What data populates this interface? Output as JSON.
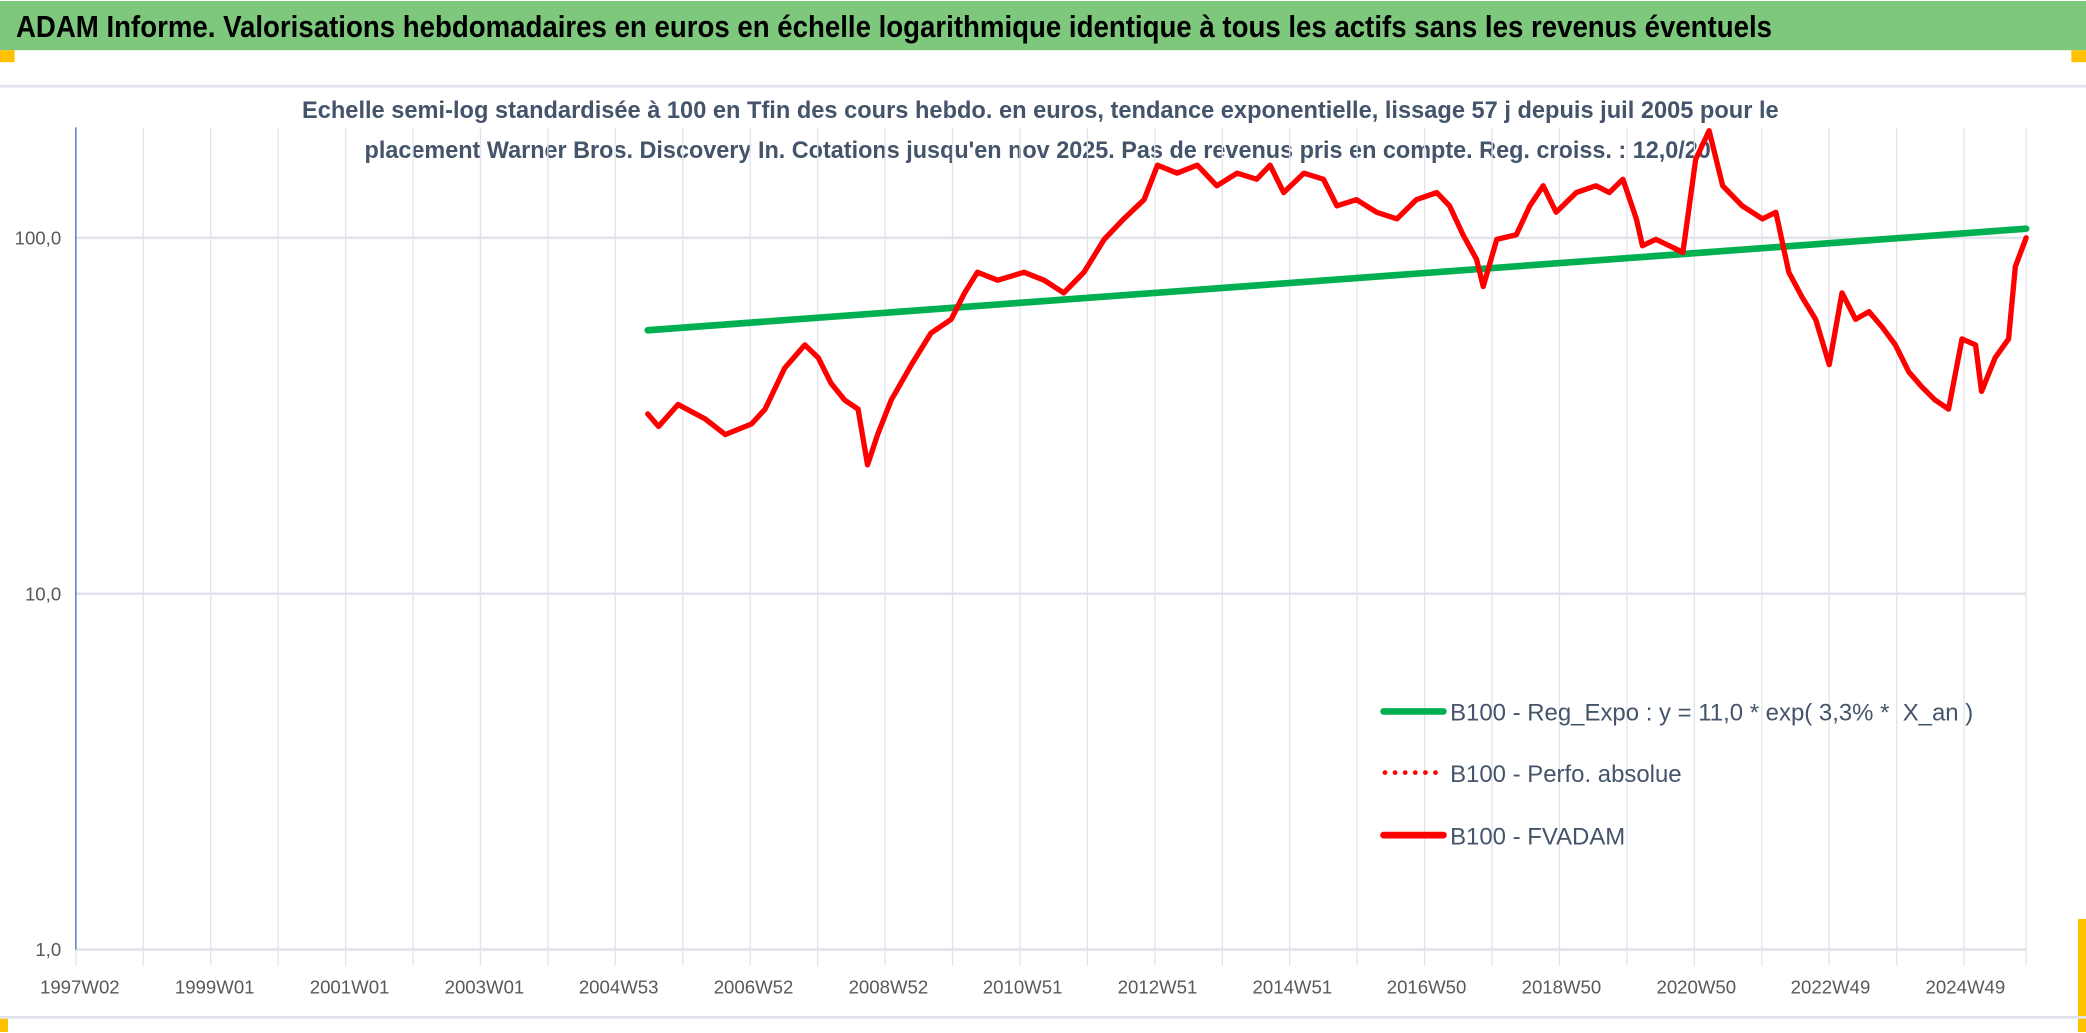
{
  "header": {
    "title": "ADAM Informe. Valorisations hebdomadaires en euros en échelle logarithmique identique à tous les actifs sans les revenus éventuels"
  },
  "colors": {
    "header_bg": "#7dc87d",
    "accent_orange": "#ffc000",
    "trend": "#00b050",
    "series": "#ff0000",
    "axis_text": "#595959",
    "title_text": "#44546a",
    "grid": "#e1e4ea",
    "axis_line": "#4472c4"
  },
  "chart_data": {
    "type": "line",
    "title_lines": [
      "Echelle semi-log standardisée à 100 en Tfin des cours hebdo. en euros, tendance exponentielle, lissage 57 j depuis juil 2005 pour le",
      "placement Warner Bros. Discovery In. Cotations jusqu'en nov 2025. Pas de revenus pris en compte. Reg. croiss. : 12,0/20"
    ],
    "y_scale": "log",
    "ylim": [
      1,
      200
    ],
    "xlim": [
      1997.0,
      2025.92
    ],
    "y_ticks": [
      {
        "value": 1,
        "label": "1,0"
      },
      {
        "value": 10,
        "label": "10,0"
      },
      {
        "value": 100,
        "label": "100,0"
      }
    ],
    "x_ticks": [
      {
        "value": 1997.0,
        "label": "1997W02"
      },
      {
        "value": 1999.0,
        "label": "1999W01"
      },
      {
        "value": 2001.0,
        "label": "2001W01"
      },
      {
        "value": 2003.0,
        "label": "2003W01"
      },
      {
        "value": 2004.99,
        "label": "2004W53"
      },
      {
        "value": 2006.99,
        "label": "2006W52"
      },
      {
        "value": 2008.99,
        "label": "2008W52"
      },
      {
        "value": 2010.98,
        "label": "2010W51"
      },
      {
        "value": 2012.98,
        "label": "2012W51"
      },
      {
        "value": 2014.98,
        "label": "2014W51"
      },
      {
        "value": 2016.97,
        "label": "2016W50"
      },
      {
        "value": 2018.97,
        "label": "2018W50"
      },
      {
        "value": 2020.97,
        "label": "2020W50"
      },
      {
        "value": 2022.96,
        "label": "2022W49"
      },
      {
        "value": 2024.96,
        "label": "2024W49"
      }
    ],
    "grid": "on",
    "legend_position": "bottom-right",
    "series": [
      {
        "name": "B100 - Reg_Expo : y = 11,0 * exp( 3,3% *  X_an )",
        "style": "solid",
        "color": "#00b050",
        "points": [
          [
            2005.48,
            55
          ],
          [
            2025.92,
            106
          ]
        ]
      },
      {
        "name": "B100 - Perfo. absolue",
        "style": "dotted",
        "color": "#ff0000",
        "points": []
      },
      {
        "name": "B100 - FVADAM",
        "style": "solid",
        "color": "#ff0000",
        "points": [
          [
            2005.48,
            32
          ],
          [
            2005.64,
            29.5
          ],
          [
            2005.93,
            34
          ],
          [
            2006.33,
            31
          ],
          [
            2006.63,
            28
          ],
          [
            2007.02,
            30
          ],
          [
            2007.22,
            33
          ],
          [
            2007.51,
            43
          ],
          [
            2007.81,
            50
          ],
          [
            2008.01,
            46
          ],
          [
            2008.2,
            39
          ],
          [
            2008.4,
            35
          ],
          [
            2008.6,
            33
          ],
          [
            2008.74,
            23
          ],
          [
            2008.89,
            28
          ],
          [
            2009.09,
            35
          ],
          [
            2009.39,
            44
          ],
          [
            2009.68,
            54
          ],
          [
            2009.98,
            59
          ],
          [
            2010.18,
            70
          ],
          [
            2010.37,
            80
          ],
          [
            2010.67,
            76
          ],
          [
            2011.06,
            80
          ],
          [
            2011.36,
            76
          ],
          [
            2011.65,
            70
          ],
          [
            2011.95,
            80
          ],
          [
            2012.25,
            99
          ],
          [
            2012.54,
            113
          ],
          [
            2012.84,
            128
          ],
          [
            2013.04,
            160
          ],
          [
            2013.33,
            152
          ],
          [
            2013.63,
            160
          ],
          [
            2013.92,
            140
          ],
          [
            2014.22,
            152
          ],
          [
            2014.51,
            146
          ],
          [
            2014.71,
            160
          ],
          [
            2014.91,
            134
          ],
          [
            2015.21,
            152
          ],
          [
            2015.5,
            146
          ],
          [
            2015.7,
            123
          ],
          [
            2015.99,
            128
          ],
          [
            2016.29,
            118
          ],
          [
            2016.59,
            113
          ],
          [
            2016.88,
            128
          ],
          [
            2017.18,
            134
          ],
          [
            2017.37,
            123
          ],
          [
            2017.57,
            102
          ],
          [
            2017.77,
            87
          ],
          [
            2017.87,
            73
          ],
          [
            2018.07,
            99
          ],
          [
            2018.36,
            102
          ],
          [
            2018.56,
            123
          ],
          [
            2018.76,
            140
          ],
          [
            2018.95,
            118
          ],
          [
            2019.25,
            134
          ],
          [
            2019.54,
            140
          ],
          [
            2019.74,
            134
          ],
          [
            2019.94,
            146
          ],
          [
            2020.14,
            113
          ],
          [
            2020.23,
            95
          ],
          [
            2020.43,
            99
          ],
          [
            2020.63,
            95
          ],
          [
            2020.83,
            91
          ],
          [
            2021.02,
            166
          ],
          [
            2021.22,
            200
          ],
          [
            2021.42,
            140
          ],
          [
            2021.71,
            123
          ],
          [
            2022.01,
            113
          ],
          [
            2022.21,
            118
          ],
          [
            2022.4,
            80
          ],
          [
            2022.6,
            68
          ],
          [
            2022.8,
            59
          ],
          [
            2023.0,
            44
          ],
          [
            2023.19,
            70
          ],
          [
            2023.39,
            59
          ],
          [
            2023.59,
            62
          ],
          [
            2023.79,
            56
          ],
          [
            2023.98,
            50
          ],
          [
            2024.18,
            42
          ],
          [
            2024.38,
            38
          ],
          [
            2024.57,
            35
          ],
          [
            2024.77,
            33
          ],
          [
            2024.97,
            52
          ],
          [
            2025.17,
            50
          ],
          [
            2025.26,
            37
          ],
          [
            2025.46,
            46
          ],
          [
            2025.66,
            52
          ],
          [
            2025.76,
            83
          ],
          [
            2025.92,
            100
          ]
        ]
      }
    ]
  }
}
